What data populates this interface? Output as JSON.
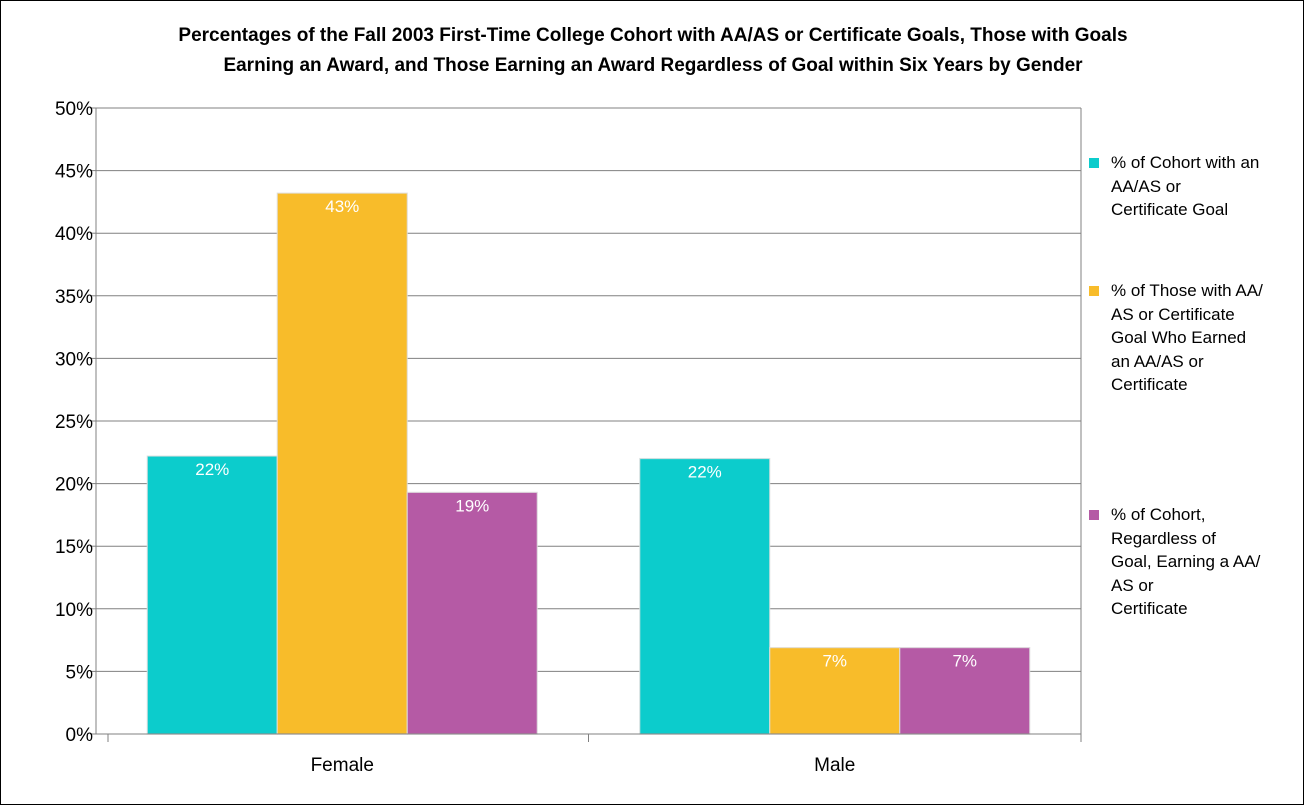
{
  "chart_data": {
    "type": "bar",
    "title_lines": [
      "Percentages of the Fall 2003 First-Time College Cohort with AA/AS or Certificate Goals, Those with Goals",
      "Earning an Award, and Those Earning an Award Regardless of Goal within Six Years by Gender"
    ],
    "categories": [
      "Female",
      "Male"
    ],
    "ylim": [
      0,
      50
    ],
    "y_ticks": [
      0,
      5,
      10,
      15,
      20,
      25,
      30,
      35,
      40,
      45,
      50
    ],
    "y_tick_labels": [
      "0%",
      "5%",
      "10%",
      "15%",
      "20%",
      "25%",
      "30%",
      "35%",
      "40%",
      "45%",
      "50%"
    ],
    "grid": true,
    "legend_position": "right",
    "series": [
      {
        "name_lines": [
          "% of Cohort with an",
          "AA/AS or",
          "Certificate Goal"
        ],
        "color": "#0ccccc",
        "values": [
          22.2,
          22.0
        ],
        "labels": [
          "22%",
          "22%"
        ]
      },
      {
        "name_lines": [
          "% of Those with AA/",
          "AS or Certificate",
          "Goal Who Earned",
          "an AA/AS or",
          "Certificate"
        ],
        "color": "#f8bc2a",
        "values": [
          43.2,
          6.9
        ],
        "labels": [
          "43%",
          "7%"
        ]
      },
      {
        "name_lines": [
          "% of Cohort,",
          "Regardless of",
          "Goal, Earning a AA/",
          "AS or",
          "Certificate"
        ],
        "color": "#b55aa5",
        "values": [
          19.3,
          6.9
        ],
        "labels": [
          "19%",
          "7%"
        ]
      }
    ]
  }
}
